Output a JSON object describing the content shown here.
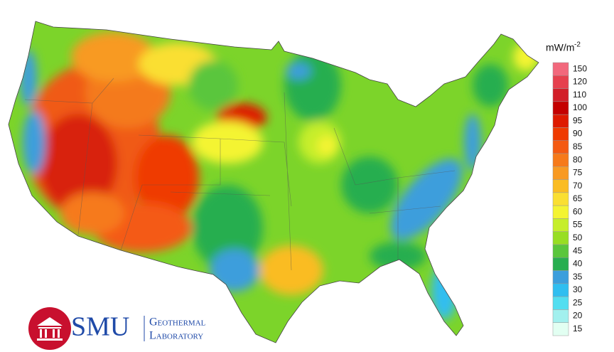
{
  "map": {
    "legend": {
      "unit": "mW/m",
      "unit_exponent": "-2",
      "entries": [
        {
          "label": 150,
          "color": "#f2687c"
        },
        {
          "label": 120,
          "color": "#e6404e"
        },
        {
          "label": 110,
          "color": "#d21e28"
        },
        {
          "label": 100,
          "color": "#c40000"
        },
        {
          "label": 95,
          "color": "#de1a00"
        },
        {
          "label": 90,
          "color": "#ef3a00"
        },
        {
          "label": 85,
          "color": "#f45a12"
        },
        {
          "label": 80,
          "color": "#f67a1a"
        },
        {
          "label": 75,
          "color": "#f89a22"
        },
        {
          "label": 70,
          "color": "#fabc22"
        },
        {
          "label": 65,
          "color": "#fadf32"
        },
        {
          "label": 60,
          "color": "#f4f432"
        },
        {
          "label": 55,
          "color": "#c6ee2a"
        },
        {
          "label": 50,
          "color": "#98de22"
        },
        {
          "label": 45,
          "color": "#5ac63c"
        },
        {
          "label": 40,
          "color": "#28ae50"
        },
        {
          "label": 35,
          "color": "#3c9edc"
        },
        {
          "label": 30,
          "color": "#30bef0"
        },
        {
          "label": 25,
          "color": "#52def0"
        },
        {
          "label": 20,
          "color": "#a2f0ee"
        },
        {
          "label": 15,
          "color": "#e2fff2"
        }
      ]
    }
  },
  "logo": {
    "name": "SMU",
    "line1": "Geothermal",
    "line2": "Laboratory"
  }
}
